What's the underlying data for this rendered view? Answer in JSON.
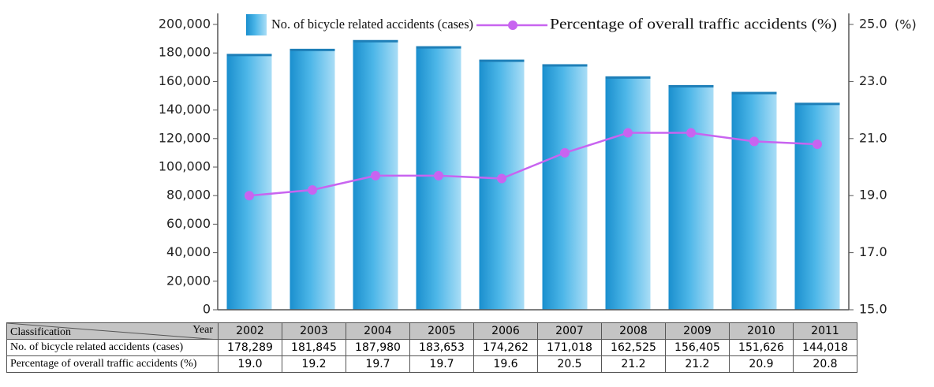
{
  "chart_data": {
    "type": "bar",
    "categories": [
      "2002",
      "2003",
      "2004",
      "2005",
      "2006",
      "2007",
      "2008",
      "2009",
      "2010",
      "2011"
    ],
    "series": [
      {
        "name": "No. of bicycle related accidents (cases)",
        "type": "bar",
        "axis": "left",
        "values": [
          178289,
          181845,
          187980,
          183653,
          174262,
          171018,
          162525,
          156405,
          151626,
          144018
        ]
      },
      {
        "name": "Percentage of overall traffic accidents (%)",
        "type": "line",
        "axis": "right",
        "values": [
          19.0,
          19.2,
          19.7,
          19.7,
          19.6,
          20.5,
          21.2,
          21.2,
          20.9,
          20.8
        ]
      }
    ],
    "y_left": {
      "range": [
        0,
        200000
      ],
      "ticks": [
        "200,000",
        "180,000",
        "160,000",
        "140,000",
        "120,000",
        "100,000",
        "80,000",
        "60,000",
        "40,000",
        "20,000",
        "0"
      ]
    },
    "y_right": {
      "range": [
        15.0,
        25.0
      ],
      "ticks": [
        "25.0",
        "23.0",
        "21.0",
        "19.0",
        "17.0",
        "15.0"
      ],
      "unit": "(%)"
    },
    "legend_position": "top",
    "colors": {
      "bar": "#2fa4dc",
      "line": "#c864f0"
    },
    "table": {
      "corner_top": "Year",
      "corner_bottom": "Classification",
      "row1_label": "No. of bicycle related accidents (cases)",
      "row1_values": [
        "178,289",
        "181,845",
        "187,980",
        "183,653",
        "174,262",
        "171,018",
        "162,525",
        "156,405",
        "151,626",
        "144,018"
      ],
      "row2_label": "Percentage of overall traffic accidents (%)",
      "row2_values": [
        "19.0",
        "19.2",
        "19.7",
        "19.7",
        "19.6",
        "20.5",
        "21.2",
        "21.2",
        "20.9",
        "20.8"
      ]
    }
  }
}
